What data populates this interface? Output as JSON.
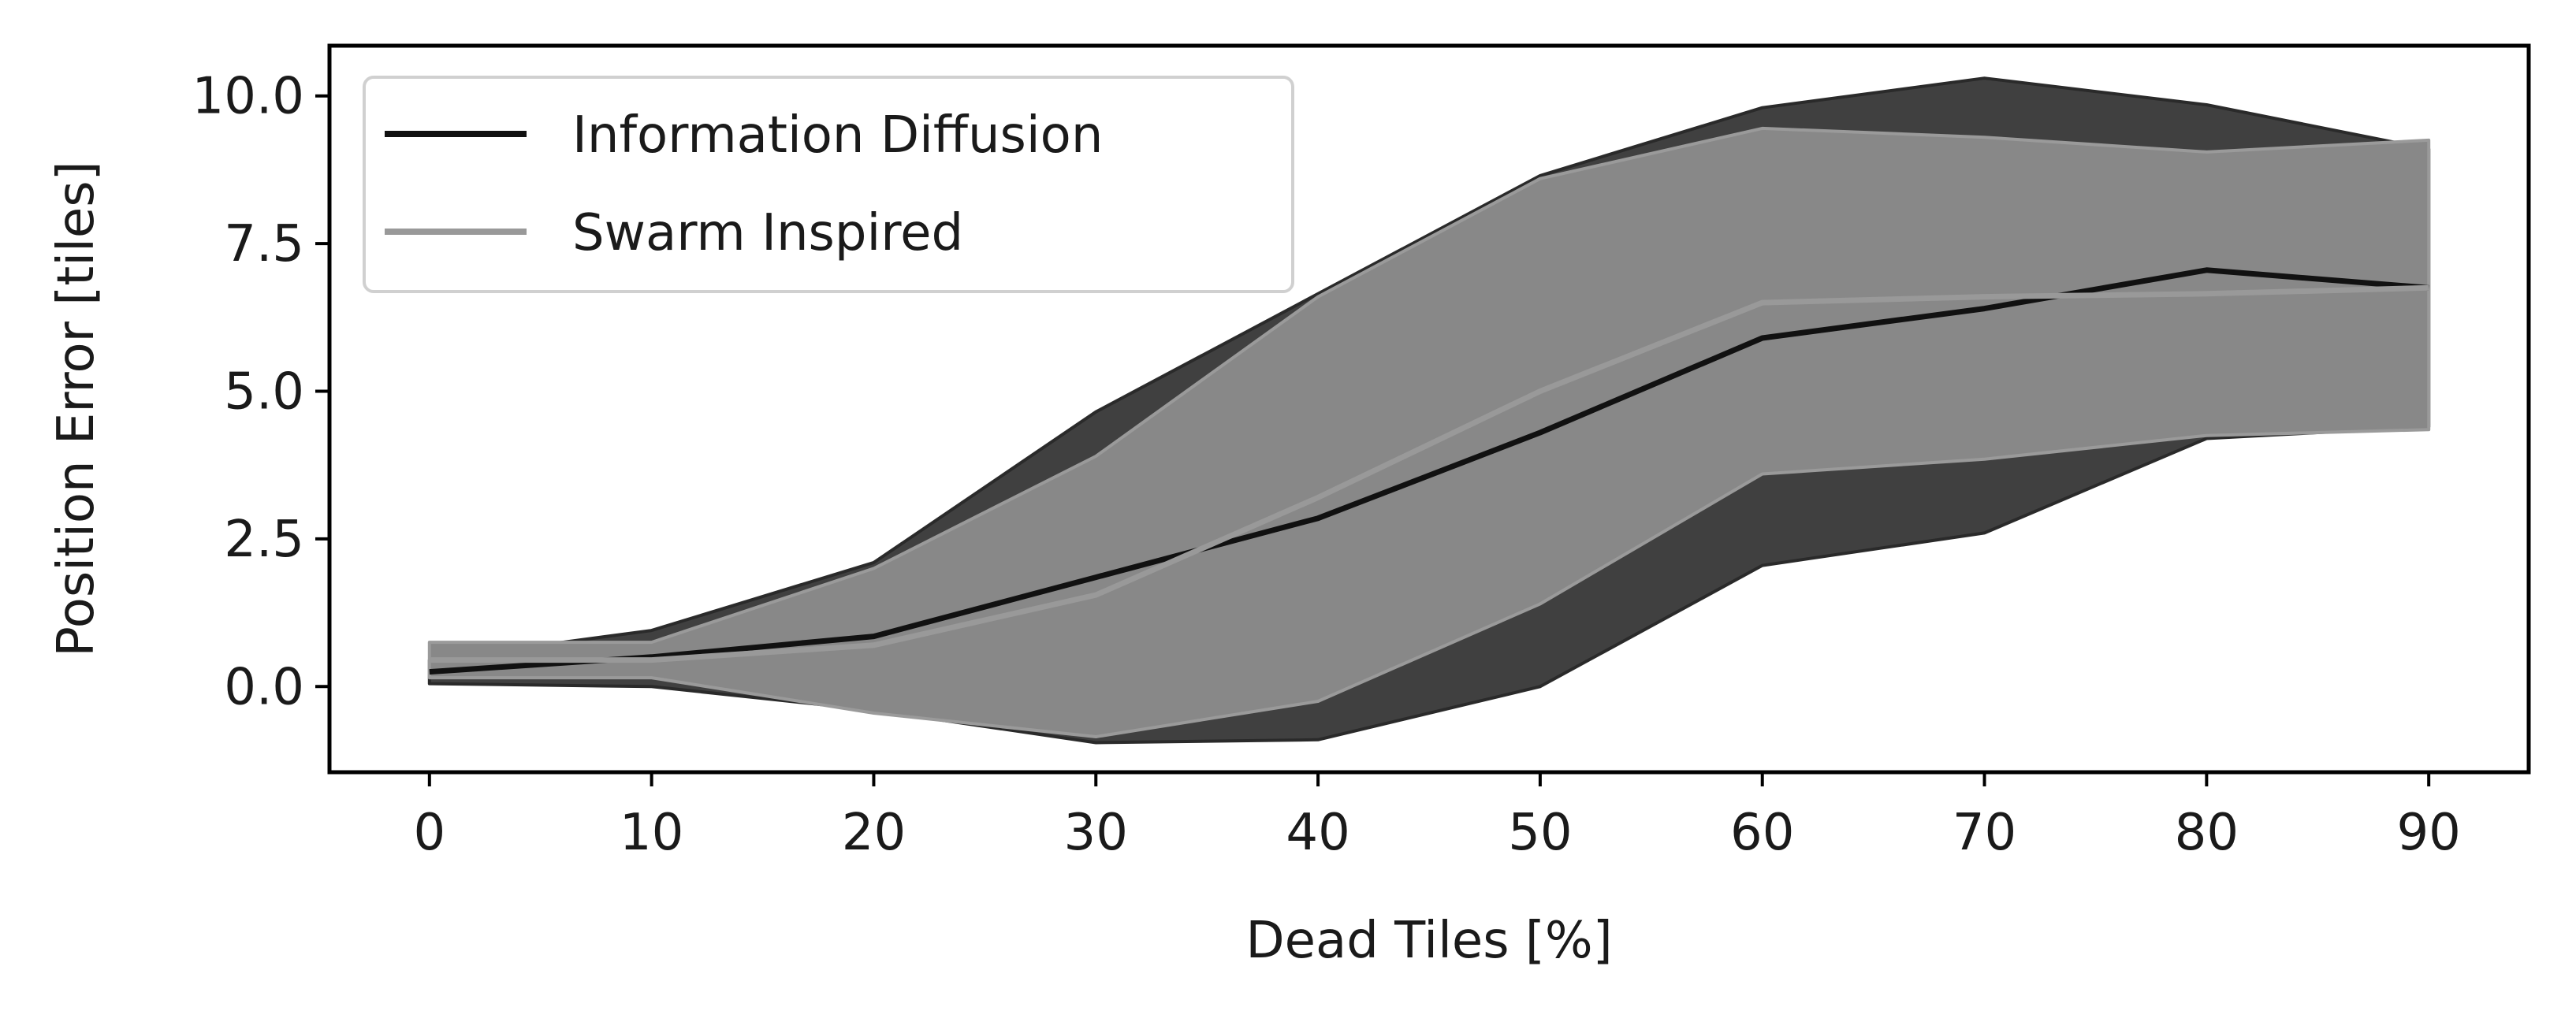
{
  "chart_data": {
    "type": "line",
    "title": "",
    "xlabel": "Dead Tiles [%]",
    "ylabel": "Position Error [tiles]",
    "xlim": [
      -4.5,
      94.5
    ],
    "ylim": [
      -1.45,
      10.85
    ],
    "grid": false,
    "legend_position": "top-left",
    "x": [
      0,
      10,
      20,
      30,
      40,
      50,
      60,
      70,
      80,
      90
    ],
    "x_ticks": [
      "0",
      "10",
      "20",
      "30",
      "40",
      "50",
      "60",
      "70",
      "80",
      "90"
    ],
    "y_ticks": [
      0.0,
      2.5,
      5.0,
      7.5,
      10.0
    ],
    "y_tick_labels": [
      "0.0",
      "2.5",
      "5.0",
      "7.5",
      "10.0"
    ],
    "series": [
      {
        "name": "Information Diffusion",
        "color": "#111111",
        "band_color": "#404040",
        "mean": [
          0.25,
          0.5,
          0.85,
          1.85,
          2.85,
          4.3,
          5.9,
          6.4,
          7.05,
          6.75
        ],
        "upper": [
          0.45,
          0.95,
          2.1,
          4.65,
          6.65,
          8.65,
          9.8,
          10.3,
          9.85,
          9.1
        ],
        "lower": [
          0.05,
          0.0,
          -0.4,
          -0.95,
          -0.9,
          0.0,
          2.05,
          2.6,
          4.2,
          4.4
        ]
      },
      {
        "name": "Swarm Inspired",
        "color": "#999999",
        "band_color": "#888888",
        "mean": [
          0.45,
          0.45,
          0.7,
          1.55,
          3.2,
          5.0,
          6.5,
          6.6,
          6.65,
          6.75
        ],
        "upper": [
          0.75,
          0.75,
          2.0,
          3.9,
          6.6,
          8.6,
          9.45,
          9.3,
          9.05,
          9.25
        ],
        "lower": [
          0.15,
          0.15,
          -0.45,
          -0.85,
          -0.25,
          1.4,
          3.6,
          3.85,
          4.25,
          4.35
        ]
      }
    ]
  }
}
